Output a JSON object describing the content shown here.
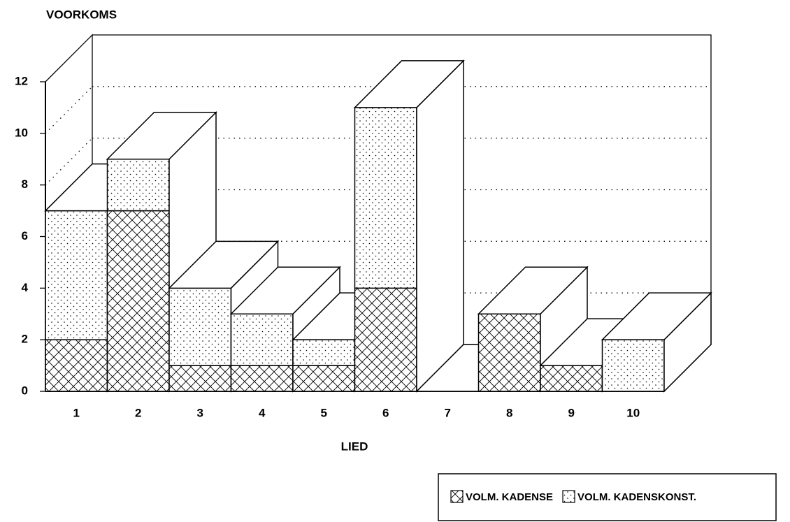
{
  "chart_data": {
    "type": "bar3d_stacked",
    "y_label": "VOORKOMS",
    "x_label": "LIED",
    "categories": [
      "1",
      "2",
      "3",
      "4",
      "5",
      "6",
      "7",
      "8",
      "9",
      "10"
    ],
    "series": [
      {
        "name": "VOLM. KADENSE",
        "pattern": "crosshatch",
        "color": "#000000",
        "values": [
          2,
          7,
          1,
          1,
          1,
          4,
          0,
          3,
          1,
          0
        ]
      },
      {
        "name": "VOLM. KADENSKONST.",
        "pattern": "dots",
        "color": "#000000",
        "values": [
          5,
          2,
          3,
          2,
          1,
          7,
          0,
          0,
          0,
          2
        ]
      }
    ],
    "ylim": [
      0,
      12
    ],
    "yticks": [
      0,
      2,
      4,
      6,
      8,
      10,
      12
    ],
    "grid": true,
    "legend": "bottom-right"
  }
}
